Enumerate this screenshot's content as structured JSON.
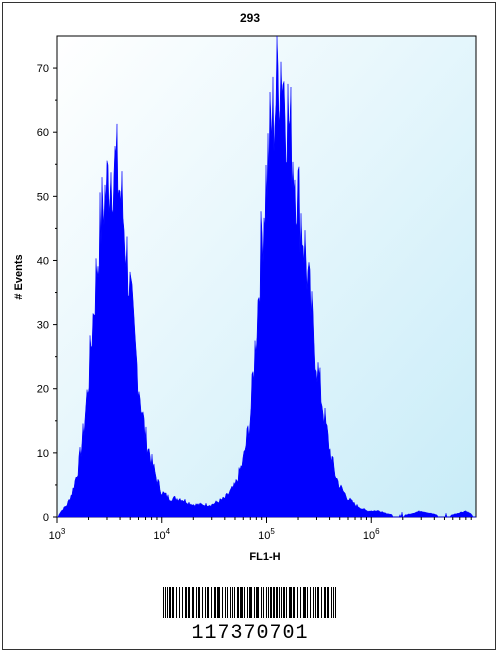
{
  "chart_data": {
    "type": "area",
    "title": "293",
    "xlabel": "FL1-H",
    "ylabel": "# Events",
    "x_scale": "log",
    "xlim": [
      1000,
      10000000
    ],
    "ylim": [
      0,
      75
    ],
    "x_ticks": [
      {
        "base": "10",
        "exp": "3",
        "value": 1000
      },
      {
        "base": "10",
        "exp": "4",
        "value": 10000
      },
      {
        "base": "10",
        "exp": "5",
        "value": 100000
      },
      {
        "base": "10",
        "exp": "6",
        "value": 1000000
      }
    ],
    "y_ticks": [
      "0",
      "10",
      "20",
      "30",
      "40",
      "50",
      "60",
      "70"
    ],
    "fill_color": "#0000ff",
    "background_gradient": [
      "#ffffff",
      "#c8ecf8"
    ],
    "series": [
      {
        "values": [
          [
            1000,
            0
          ],
          [
            1100,
            1
          ],
          [
            1250,
            2
          ],
          [
            1400,
            4
          ],
          [
            1600,
            8
          ],
          [
            1800,
            14
          ],
          [
            2000,
            22
          ],
          [
            2200,
            32
          ],
          [
            2400,
            40
          ],
          [
            2600,
            47
          ],
          [
            2800,
            51
          ],
          [
            3000,
            53
          ],
          [
            3200,
            56
          ],
          [
            3500,
            57
          ],
          [
            3800,
            55
          ],
          [
            4200,
            50
          ],
          [
            4600,
            43
          ],
          [
            5000,
            36
          ],
          [
            5500,
            28
          ],
          [
            6000,
            22
          ],
          [
            6500,
            17
          ],
          [
            7000,
            13
          ],
          [
            8000,
            9
          ],
          [
            9000,
            6
          ],
          [
            10000,
            4
          ],
          [
            12000,
            3
          ],
          [
            15000,
            3
          ],
          [
            20000,
            2
          ],
          [
            25000,
            2
          ],
          [
            30000,
            2
          ],
          [
            40000,
            3
          ],
          [
            50000,
            5
          ],
          [
            60000,
            9
          ],
          [
            70000,
            16
          ],
          [
            80000,
            30
          ],
          [
            90000,
            45
          ],
          [
            100000,
            55
          ],
          [
            110000,
            62
          ],
          [
            120000,
            66
          ],
          [
            130000,
            72
          ],
          [
            140000,
            74
          ],
          [
            150000,
            68
          ],
          [
            170000,
            62
          ],
          [
            200000,
            52
          ],
          [
            230000,
            44
          ],
          [
            260000,
            35
          ],
          [
            300000,
            25
          ],
          [
            350000,
            17
          ],
          [
            400000,
            11
          ],
          [
            450000,
            7
          ],
          [
            500000,
            5
          ],
          [
            600000,
            3
          ],
          [
            700000,
            2
          ],
          [
            900000,
            1
          ],
          [
            1200000,
            1
          ],
          [
            1800000,
            0
          ],
          [
            3000000,
            1
          ],
          [
            5000000,
            0
          ],
          [
            8000000,
            1
          ],
          [
            10000000,
            0
          ]
        ]
      }
    ]
  },
  "barcode": {
    "number": "117370701"
  }
}
